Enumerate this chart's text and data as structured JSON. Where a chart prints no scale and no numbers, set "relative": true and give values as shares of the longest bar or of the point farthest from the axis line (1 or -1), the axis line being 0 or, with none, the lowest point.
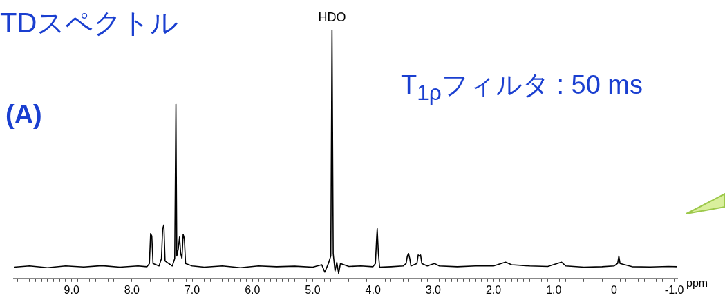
{
  "chart_data": {
    "type": "line",
    "title": "TDスペクトル",
    "xlabel": "ppm",
    "relative": true,
    "color": "#000000",
    "marker": "none",
    "line_style": "solid",
    "grid": false,
    "legend": false,
    "tick_labels": "x",
    "xlim": [
      9.96,
      -1.05
    ],
    "xticks": [
      {
        "value": 9.9,
        "label": null
      },
      {
        "value": 9.8,
        "label": null
      },
      {
        "value": 9.7,
        "label": null
      },
      {
        "value": 9.6,
        "label": null
      },
      {
        "value": 9.5,
        "label": null
      },
      {
        "value": 9.4,
        "label": null
      },
      {
        "value": 9.3,
        "label": null
      },
      {
        "value": 9.2,
        "label": null
      },
      {
        "value": 9.1,
        "label": null
      },
      {
        "value": 9,
        "label": "9.0"
      },
      {
        "value": 8.9,
        "label": null
      },
      {
        "value": 8.8,
        "label": null
      },
      {
        "value": 8.7,
        "label": null
      },
      {
        "value": 8.6,
        "label": null
      },
      {
        "value": 8.5,
        "label": null
      },
      {
        "value": 8.4,
        "label": null
      },
      {
        "value": 8.3,
        "label": null
      },
      {
        "value": 8.2,
        "label": null
      },
      {
        "value": 8.1,
        "label": null
      },
      {
        "value": 8,
        "label": "8.0"
      },
      {
        "value": 7.9,
        "label": null
      },
      {
        "value": 7.8,
        "label": null
      },
      {
        "value": 7.7,
        "label": null
      },
      {
        "value": 7.6,
        "label": null
      },
      {
        "value": 7.5,
        "label": null
      },
      {
        "value": 7.4,
        "label": null
      },
      {
        "value": 7.3,
        "label": null
      },
      {
        "value": 7.2,
        "label": null
      },
      {
        "value": 7.1,
        "label": null
      },
      {
        "value": 7,
        "label": "7.0"
      },
      {
        "value": 6.9,
        "label": null
      },
      {
        "value": 6.8,
        "label": null
      },
      {
        "value": 6.7,
        "label": null
      },
      {
        "value": 6.6,
        "label": null
      },
      {
        "value": 6.5,
        "label": null
      },
      {
        "value": 6.4,
        "label": null
      },
      {
        "value": 6.3,
        "label": null
      },
      {
        "value": 6.2,
        "label": null
      },
      {
        "value": 6.1,
        "label": null
      },
      {
        "value": 6,
        "label": "6.0"
      },
      {
        "value": 5.9,
        "label": null
      },
      {
        "value": 5.8,
        "label": null
      },
      {
        "value": 5.7,
        "label": null
      },
      {
        "value": 5.6,
        "label": null
      },
      {
        "value": 5.5,
        "label": null
      },
      {
        "value": 5.4,
        "label": null
      },
      {
        "value": 5.3,
        "label": null
      },
      {
        "value": 5.2,
        "label": null
      },
      {
        "value": 5.1,
        "label": null
      },
      {
        "value": 5,
        "label": "5.0"
      },
      {
        "value": 4.9,
        "label": null
      },
      {
        "value": 4.8,
        "label": null
      },
      {
        "value": 4.7,
        "label": null
      },
      {
        "value": 4.6,
        "label": null
      },
      {
        "value": 4.5,
        "label": null
      },
      {
        "value": 4.4,
        "label": null
      },
      {
        "value": 4.3,
        "label": null
      },
      {
        "value": 4.2,
        "label": null
      },
      {
        "value": 4.1,
        "label": null
      },
      {
        "value": 4,
        "label": "4.0"
      },
      {
        "value": 3.9,
        "label": null
      },
      {
        "value": 3.8,
        "label": null
      },
      {
        "value": 3.7,
        "label": null
      },
      {
        "value": 3.6,
        "label": null
      },
      {
        "value": 3.5,
        "label": null
      },
      {
        "value": 3.4,
        "label": null
      },
      {
        "value": 3.3,
        "label": null
      },
      {
        "value": 3.2,
        "label": null
      },
      {
        "value": 3.1,
        "label": null
      },
      {
        "value": 3,
        "label": "3.0"
      },
      {
        "value": 2.9,
        "label": null
      },
      {
        "value": 2.8,
        "label": null
      },
      {
        "value": 2.7,
        "label": null
      },
      {
        "value": 2.6,
        "label": null
      },
      {
        "value": 2.5,
        "label": null
      },
      {
        "value": 2.4,
        "label": null
      },
      {
        "value": 2.3,
        "label": null
      },
      {
        "value": 2.2,
        "label": null
      },
      {
        "value": 2.1,
        "label": null
      },
      {
        "value": 2,
        "label": "2.0"
      },
      {
        "value": 1.9,
        "label": null
      },
      {
        "value": 1.8,
        "label": null
      },
      {
        "value": 1.7,
        "label": null
      },
      {
        "value": 1.6,
        "label": null
      },
      {
        "value": 1.5,
        "label": null
      },
      {
        "value": 1.4,
        "label": null
      },
      {
        "value": 1.3,
        "label": null
      },
      {
        "value": 1.2,
        "label": null
      },
      {
        "value": 1.1,
        "label": null
      },
      {
        "value": 1,
        "label": "1.0"
      },
      {
        "value": 0.9,
        "label": null
      },
      {
        "value": 0.8,
        "label": null
      },
      {
        "value": 0.7,
        "label": null
      },
      {
        "value": 0.6,
        "label": null
      },
      {
        "value": 0.5,
        "label": null
      },
      {
        "value": 0.4,
        "label": null
      },
      {
        "value": 0.3,
        "label": null
      },
      {
        "value": 0.2,
        "label": null
      },
      {
        "value": 0.1,
        "label": null
      },
      0,
      {
        "value": -0.1,
        "label": null
      },
      {
        "value": -0.2,
        "label": null
      },
      {
        "value": -0.3,
        "label": null
      },
      {
        "value": -0.4,
        "label": null
      },
      {
        "value": -0.5,
        "label": null
      },
      {
        "value": -0.6,
        "label": null
      },
      {
        "value": -0.7,
        "label": null
      },
      {
        "value": -0.8,
        "label": null
      },
      {
        "value": -0.9,
        "label": null
      },
      {
        "value": -1,
        "label": "-1.0"
      }
    ],
    "x": [
      9.96,
      9.7,
      9.4,
      9.1,
      8.8,
      8.5,
      8.2,
      7.9,
      7.75,
      7.71,
      7.69,
      7.67,
      7.65,
      7.55,
      7.51,
      7.49,
      7.47,
      7.45,
      7.33,
      7.29,
      7.27,
      7.255,
      7.23,
      7.21,
      7.19,
      7.17,
      7.15,
      7.13,
      7.11,
      7.0,
      6.8,
      6.5,
      6.2,
      5.9,
      5.6,
      5.3,
      5.0,
      4.85,
      4.8,
      4.74,
      4.7,
      4.68,
      4.66,
      4.63,
      4.6,
      4.57,
      4.54,
      4.4,
      4.2,
      4.0,
      3.96,
      3.94,
      3.93,
      3.91,
      3.89,
      3.7,
      3.5,
      3.45,
      3.43,
      3.41,
      3.39,
      3.37,
      3.27,
      3.25,
      3.23,
      3.21,
      3.19,
      3.1,
      2.98,
      2.9,
      2.6,
      2.3,
      2.0,
      1.8,
      1.7,
      1.4,
      1.1,
      0.87,
      0.8,
      0.5,
      0.2,
      0.0,
      -0.06,
      -0.08,
      -0.1,
      -0.3,
      -0.6,
      -0.9,
      -1.05
    ],
    "values": [
      0.045,
      0.05,
      0.043,
      0.05,
      0.046,
      0.051,
      0.045,
      0.05,
      0.047,
      0.06,
      0.18,
      0.17,
      0.06,
      0.05,
      0.08,
      0.2,
      0.215,
      0.07,
      0.05,
      0.08,
      0.7,
      0.09,
      0.12,
      0.166,
      0.1,
      0.08,
      0.177,
      0.16,
      0.06,
      0.05,
      0.045,
      0.05,
      0.043,
      0.05,
      0.047,
      0.049,
      0.045,
      0.055,
      0.025,
      0.06,
      0.09,
      1,
      0.1,
      0.03,
      0.065,
      0.02,
      0.06,
      0.048,
      0.05,
      0.047,
      0.06,
      0.16,
      0.2,
      0.1,
      0.045,
      0.047,
      0.05,
      0.06,
      0.09,
      0.1,
      0.08,
      0.05,
      0.06,
      0.094,
      0.09,
      0.094,
      0.06,
      0.05,
      0.06,
      0.05,
      0.047,
      0.05,
      0.05,
      0.065,
      0.055,
      0.05,
      0.048,
      0.065,
      0.05,
      0.045,
      0.047,
      0.05,
      0.06,
      0.09,
      0.06,
      0.047,
      0.046,
      0.048,
      0.047
    ],
    "annotations": [
      {
        "text": "HDO",
        "x": 4.68,
        "y": 1
      },
      "(A)",
      "T$_{1ρ}$フィルタ : 50 ms"
    ]
  }
}
